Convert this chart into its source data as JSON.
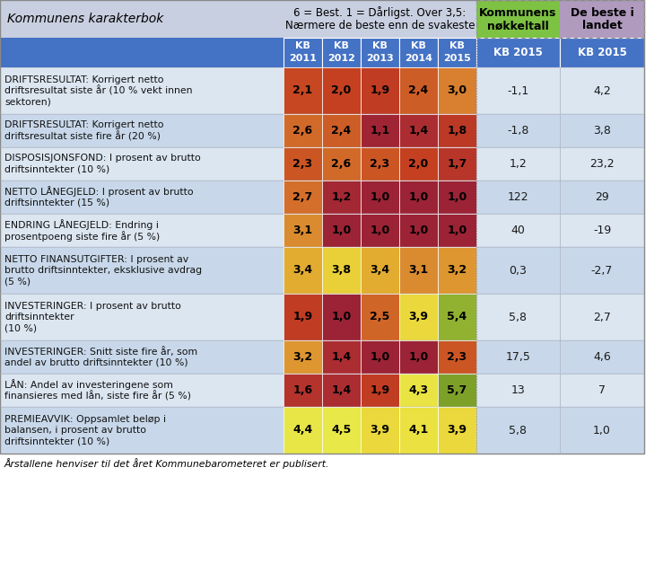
{
  "title_left": "Kommunens karakterbok",
  "title_center_1": "6 = Best. 1 = Dårligst. Over 3,5:",
  "title_center_2": "Nærmere de beste enn de svakeste",
  "title_green_1": "Kommunens",
  "title_green_2": "nøkkeltall",
  "title_right_1": "De beste i",
  "title_right_2": "landet",
  "col_headers_line1": [
    "KB",
    "KB",
    "KB",
    "KB",
    "KB"
  ],
  "col_headers_line2": [
    "2011",
    "2012",
    "2013",
    "2014",
    "2015"
  ],
  "col_header_right1": "KB 2015",
  "col_header_right2": "KB 2015",
  "footnote": "Årstallene henviser til det året Kommunebarometeret er publisert.",
  "row_labels": [
    "DRIFTSRESULTAT: Korrigert netto\ndriftsresultat siste år (10 % vekt innen\nsektoren)",
    "DRIFTSRESULTAT: Korrigert netto\ndriftsresultat siste fire år (20 %)",
    "DISPOSISJONSFOND: I prosent av brutto\ndriftsinntekter (10 %)",
    "NETTO LÅNEGJELD: I prosent av brutto\ndriftsinntekter (15 %)",
    "ENDRING LÅNEGJELD: Endring i\nprosentpoeng siste fire år (5 %)",
    "NETTO FINANSUTGIFTER: I prosent av\nbrutto driftsinntekter, eksklusive avdrag\n(5 %)",
    "INVESTERINGER: I prosent av brutto\ndriftsinntekter\n(10 %)",
    "INVESTERINGER: Snitt siste fire år, som\nandel av brutto driftsinntekter (10 %)",
    "LÅN: Andel av investeringene som\nfinansieres med lån, siste fire år (5 %)",
    "PREMIEAVVIK: Oppsamlet beløp i\nbalansen, i prosent av brutto\ndriftsinntekter (10 %)"
  ],
  "kb_values": [
    [
      2.1,
      2.0,
      1.9,
      2.4,
      3.0
    ],
    [
      2.6,
      2.4,
      1.1,
      1.4,
      1.8
    ],
    [
      2.3,
      2.6,
      2.3,
      2.0,
      1.7
    ],
    [
      2.7,
      1.2,
      1.0,
      1.0,
      1.0
    ],
    [
      3.1,
      1.0,
      1.0,
      1.0,
      1.0
    ],
    [
      3.4,
      3.8,
      3.4,
      3.1,
      3.2
    ],
    [
      1.9,
      1.0,
      2.5,
      3.9,
      5.4
    ],
    [
      3.2,
      1.4,
      1.0,
      1.0,
      2.3
    ],
    [
      1.6,
      1.4,
      1.9,
      4.3,
      5.7
    ],
    [
      4.4,
      4.5,
      3.9,
      4.1,
      3.9
    ]
  ],
  "nokkeltall_str": [
    "-1,1",
    "-1,8",
    "1,2",
    "122",
    "40",
    "0,3",
    "5,8",
    "17,5",
    "13",
    "5,8"
  ],
  "beste_str": [
    "4,2",
    "3,8",
    "23,2",
    "29",
    "-19",
    "-2,7",
    "2,7",
    "4,6",
    "7",
    "1,0"
  ],
  "color_scale": [
    [
      1.0,
      "#9b2335"
    ],
    [
      1.5,
      "#b03030"
    ],
    [
      2.0,
      "#c44020"
    ],
    [
      2.5,
      "#d06528"
    ],
    [
      3.0,
      "#d88030"
    ],
    [
      3.5,
      "#e5b830"
    ],
    [
      4.0,
      "#ece040"
    ],
    [
      4.5,
      "#e8e848"
    ],
    [
      5.0,
      "#b0c838"
    ],
    [
      5.5,
      "#8aac30"
    ],
    [
      6.0,
      "#6a9020"
    ]
  ],
  "bg_header": "#c8cfe0",
  "bg_green": "#7dc242",
  "bg_purple": "#b09abe",
  "bg_blue": "#4472c4",
  "bg_row0": "#dce6f1",
  "bg_row1": "#c8d8ea",
  "text_white": "#ffffff",
  "text_dark": "#1a1a1a",
  "text_label": "#111111"
}
